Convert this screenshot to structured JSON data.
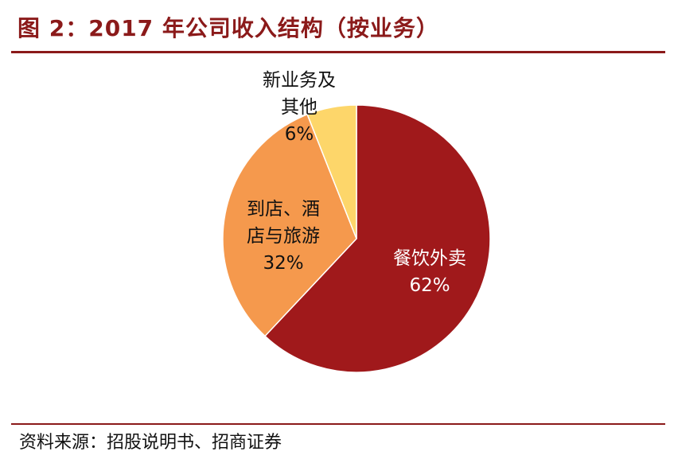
{
  "title": "图 2：2017 年公司收入结构（按业务）",
  "source": "资料来源：招股说明书、招商证券",
  "colors": {
    "title": "#8b1a1a",
    "rule": "#8b1a1a"
  },
  "chart_data": {
    "type": "pie",
    "title": "图 2：2017 年公司收入结构（按业务）",
    "slices": [
      {
        "label_lines": [
          "餐饮外卖"
        ],
        "value": 62,
        "value_label": "62%",
        "color": "#a0191b",
        "text_color": "#ffffff"
      },
      {
        "label_lines": [
          "到店、酒",
          "店与旅游"
        ],
        "value": 32,
        "value_label": "32%",
        "color": "#f5994d",
        "text_color": "#111111"
      },
      {
        "label_lines": [
          "新业务及",
          "其他"
        ],
        "value": 6,
        "value_label": "6%",
        "color": "#fdd66a",
        "text_color": "#111111"
      }
    ]
  }
}
